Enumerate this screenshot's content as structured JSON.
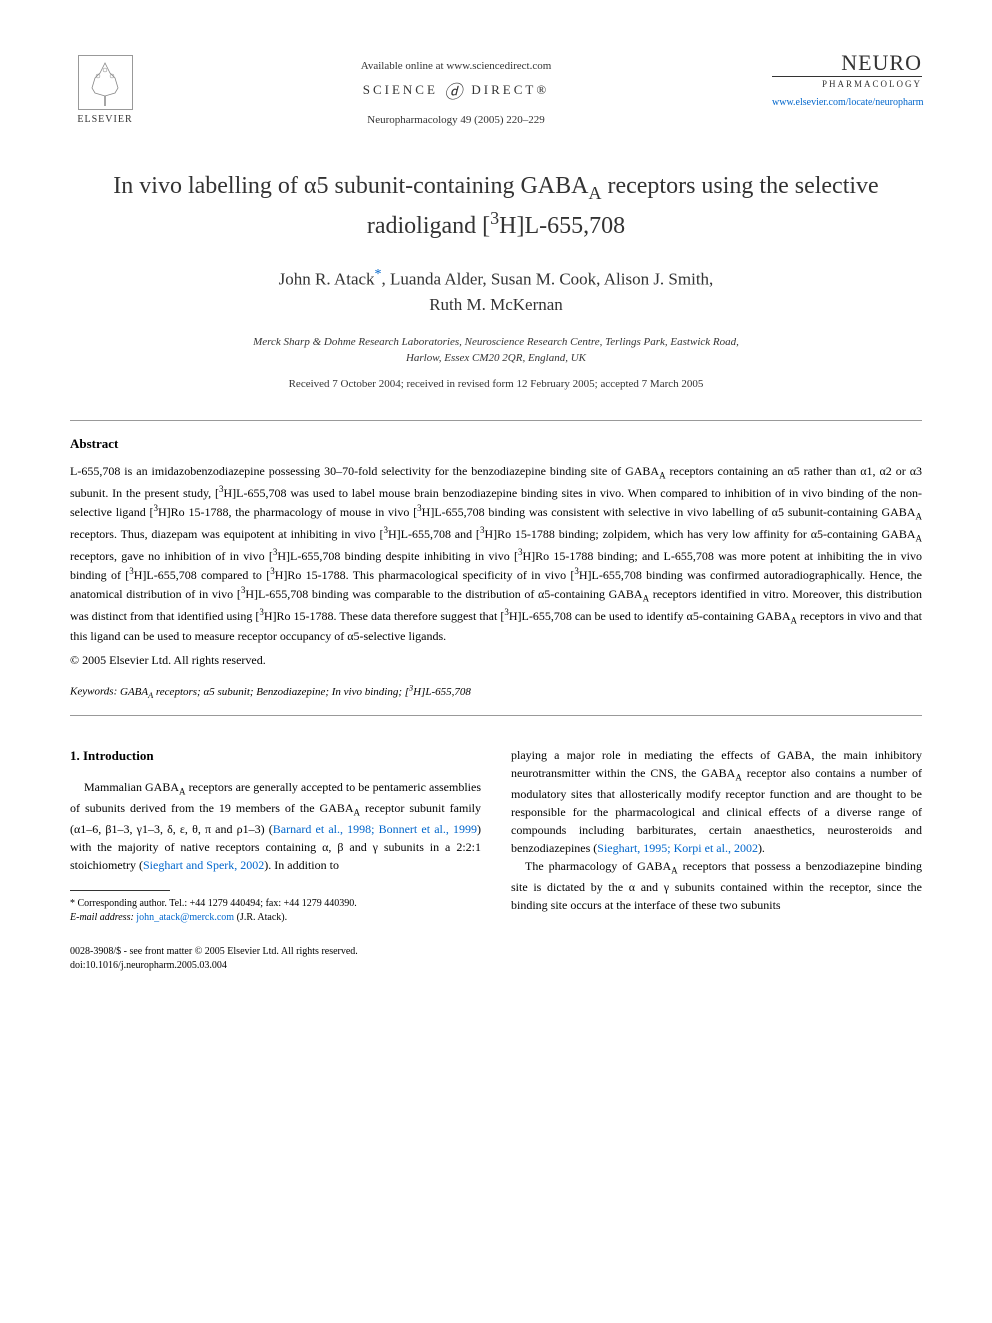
{
  "header": {
    "elsevier_label": "ELSEVIER",
    "available_text": "Available online at www.sciencedirect.com",
    "sciencedirect_left": "SCIENCE",
    "sciencedirect_right": "DIRECT®",
    "journal_reference": "Neuropharmacology 49 (2005) 220–229",
    "neuro_title": "NEURO",
    "neuro_subtitle": "PHARMACOLOGY",
    "journal_url": "www.elsevier.com/locate/neuropharm"
  },
  "article": {
    "title_html": "In vivo labelling of α5 subunit-containing GABA<sub>A</sub> receptors using the selective radioligand [<sup>3</sup>H]L-655,708",
    "authors_line1": "John R. Atack",
    "author_marker": "*",
    "authors_line1_rest": ", Luanda Alder, Susan M. Cook, Alison J. Smith,",
    "authors_line2": "Ruth M. McKernan",
    "affiliation_line1": "Merck Sharp & Dohme Research Laboratories, Neuroscience Research Centre, Terlings Park, Eastwick Road,",
    "affiliation_line2": "Harlow, Essex CM20 2QR, England, UK",
    "dates": "Received 7 October 2004; received in revised form 12 February 2005; accepted 7 March 2005"
  },
  "abstract": {
    "heading": "Abstract",
    "body_html": "L-655,708 is an imidazobenzodiazepine possessing 30–70-fold selectivity for the benzodiazepine binding site of GABA<sub>A</sub> receptors containing an α5 rather than α1, α2 or α3 subunit. In the present study, [<sup>3</sup>H]L-655,708 was used to label mouse brain benzodiazepine binding sites in vivo. When compared to inhibition of in vivo binding of the non-selective ligand [<sup>3</sup>H]Ro 15-1788, the pharmacology of mouse in vivo [<sup>3</sup>H]L-655,708 binding was consistent with selective in vivo labelling of α5 subunit-containing GABA<sub>A</sub> receptors. Thus, diazepam was equipotent at inhibiting in vivo [<sup>3</sup>H]L-655,708 and [<sup>3</sup>H]Ro 15-1788 binding; zolpidem, which has very low affinity for α5-containing GABA<sub>A</sub> receptors, gave no inhibition of in vivo [<sup>3</sup>H]L-655,708 binding despite inhibiting in vivo [<sup>3</sup>H]Ro 15-1788 binding; and L-655,708 was more potent at inhibiting the in vivo binding of [<sup>3</sup>H]L-655,708 compared to [<sup>3</sup>H]Ro 15-1788. This pharmacological specificity of in vivo [<sup>3</sup>H]L-655,708 binding was confirmed autoradiographically. Hence, the anatomical distribution of in vivo [<sup>3</sup>H]L-655,708 binding was comparable to the distribution of α5-containing GABA<sub>A</sub> receptors identified in vitro. Moreover, this distribution was distinct from that identified using [<sup>3</sup>H]Ro 15-1788. These data therefore suggest that [<sup>3</sup>H]L-655,708 can be used to identify α5-containing GABA<sub>A</sub> receptors in vivo and that this ligand can be used to measure receptor occupancy of α5-selective ligands.",
    "copyright": "© 2005 Elsevier Ltd. All rights reserved.",
    "keywords_label": "Keywords:",
    "keywords_html": "GABA<sub>A</sub> receptors; α5 subunit; Benzodiazepine; In vivo binding; [<sup>3</sup>H]L-655,708"
  },
  "body": {
    "section_heading": "1. Introduction",
    "left_para_html": "Mammalian GABA<sub>A</sub> receptors are generally accepted to be pentameric assemblies of subunits derived from the 19 members of the GABA<sub>A</sub> receptor subunit family (α1–6, β1–3, γ1–3, δ, ε, θ, π and ρ1–3) (<span class=\"cite-link\">Barnard et al., 1998; Bonnert et al., 1999</span>) with the majority of native receptors containing α, β and γ subunits in a 2:2:1 stoichiometry (<span class=\"cite-link\">Sieghart and Sperk, 2002</span>). In addition to",
    "right_para1_html": "playing a major role in mediating the effects of GABA, the main inhibitory neurotransmitter within the CNS, the GABA<sub>A</sub> receptor also contains a number of modulatory sites that allosterically modify receptor function and are thought to be responsible for the pharmacological and clinical effects of a diverse range of compounds including barbiturates, certain anaesthetics, neurosteroids and benzodiazepines (<span class=\"cite-link\">Sieghart, 1995; Korpi et al., 2002</span>).",
    "right_para2_html": "The pharmacology of GABA<sub>A</sub> receptors that possess a benzodiazepine binding site is dictated by the α and γ subunits contained within the receptor, since the binding site occurs at the interface of these two subunits"
  },
  "footnotes": {
    "corresponding": "* Corresponding author. Tel.: +44 1279 440494; fax: +44 1279 440390.",
    "email_label": "E-mail address:",
    "email": "john_atack@merck.com",
    "email_suffix": "(J.R. Atack)."
  },
  "footer": {
    "line1": "0028-3908/$ - see front matter © 2005 Elsevier Ltd. All rights reserved.",
    "line2": "doi:10.1016/j.neuropharm.2005.03.004"
  },
  "colors": {
    "link": "#0066cc",
    "text": "#000000",
    "header_text": "#333333",
    "divider": "#999999"
  }
}
